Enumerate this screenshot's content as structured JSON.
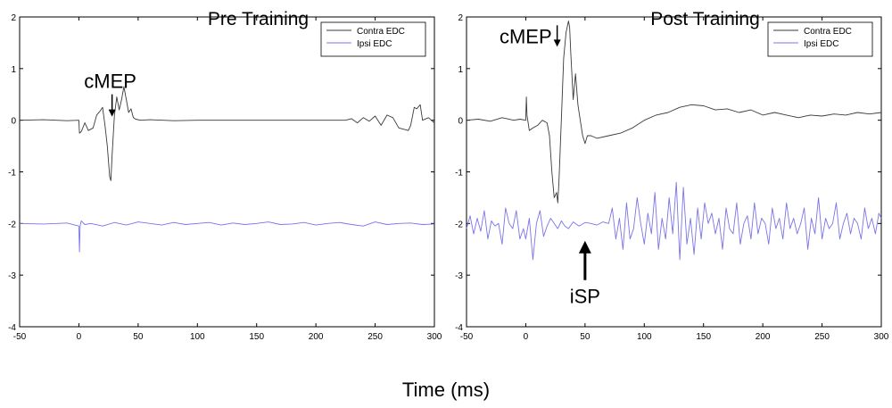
{
  "figure": {
    "xlabel": "Time (ms)"
  },
  "colors": {
    "contra": "#3a3a3a",
    "ipsi": "#7b74e8",
    "axis": "#000000"
  },
  "chart_data": [
    {
      "type": "line",
      "title": "Pre Training",
      "xlim": [
        -50,
        300
      ],
      "ylim": [
        -4,
        2
      ],
      "xticks": [
        -50,
        0,
        50,
        100,
        150,
        200,
        250,
        300
      ],
      "yticks": [
        -4,
        -3,
        -2,
        -1,
        0,
        1,
        2
      ],
      "legend": {
        "position": "top-right",
        "entries": [
          "Contra EDC",
          "Ipsi EDC"
        ]
      },
      "annotations": [
        {
          "text": "cMEP",
          "x": 28,
          "y": 0.45,
          "arrow": "down"
        }
      ],
      "series": [
        {
          "name": "Contra EDC",
          "x": [
            -50,
            -30,
            -10,
            0,
            0.5,
            2,
            5,
            8,
            12,
            15,
            18,
            20,
            22,
            24,
            26,
            27,
            28,
            30,
            32,
            34,
            36,
            38,
            40,
            42,
            44,
            46,
            48,
            52,
            60,
            80,
            100,
            150,
            200,
            225,
            230,
            235,
            240,
            245,
            250,
            255,
            260,
            265,
            270,
            278,
            280,
            283,
            285,
            288,
            290,
            295,
            300
          ],
          "y": [
            0,
            0.01,
            -0.01,
            0,
            -0.25,
            -0.22,
            -0.05,
            -0.2,
            -0.15,
            0.1,
            0.18,
            0.25,
            -0.1,
            -0.5,
            -1.1,
            -1.17,
            -0.7,
            0.1,
            0.45,
            0.2,
            0.4,
            0.65,
            0.4,
            0.15,
            0.22,
            0.05,
            0.02,
            0,
            0.01,
            -0.01,
            0,
            0,
            0,
            0,
            0.03,
            -0.05,
            0.05,
            -0.02,
            0.08,
            -0.1,
            0.1,
            0.05,
            -0.15,
            -0.2,
            -0.1,
            0.25,
            0.22,
            0.3,
            0,
            0.05,
            -0.05
          ]
        },
        {
          "name": "Ipsi EDC",
          "x": [
            -50,
            -30,
            -10,
            0,
            0.5,
            1,
            2,
            5,
            10,
            20,
            30,
            40,
            50,
            60,
            70,
            80,
            90,
            100,
            110,
            120,
            130,
            140,
            150,
            160,
            170,
            180,
            190,
            200,
            210,
            220,
            230,
            240,
            250,
            260,
            270,
            280,
            290,
            300
          ],
          "y": [
            -2,
            -2.01,
            -1.99,
            -2.05,
            -2.55,
            -2.05,
            -1.95,
            -2.02,
            -2,
            -2.05,
            -1.98,
            -2.03,
            -1.97,
            -2,
            -2.03,
            -1.98,
            -2.02,
            -2,
            -1.98,
            -2.03,
            -1.99,
            -2.02,
            -2,
            -1.97,
            -2.02,
            -2.01,
            -1.98,
            -2.03,
            -2,
            -1.98,
            -2.02,
            -2.05,
            -1.97,
            -2.02,
            -2,
            -1.99,
            -2.02,
            -2.01
          ]
        }
      ]
    },
    {
      "type": "line",
      "title": "Post Training",
      "xlim": [
        -50,
        300
      ],
      "ylim": [
        -4,
        2
      ],
      "xticks": [
        -50,
        0,
        50,
        100,
        150,
        200,
        250,
        300
      ],
      "yticks": [
        -4,
        -3,
        -2,
        -1,
        0,
        1,
        2
      ],
      "legend": {
        "position": "top-right",
        "entries": [
          "Contra EDC",
          "Ipsi EDC"
        ]
      },
      "annotations": [
        {
          "text": "cMEP",
          "x": 25,
          "y": 1.7,
          "arrow": "down"
        },
        {
          "text": "iSP",
          "x": 50,
          "y": -3.2,
          "arrow": "up"
        }
      ],
      "series": [
        {
          "name": "Contra EDC",
          "x": [
            -50,
            -40,
            -30,
            -20,
            -10,
            -5,
            0,
            0.5,
            1,
            3,
            6,
            10,
            14,
            18,
            20,
            22,
            24,
            26,
            27,
            28,
            30,
            32,
            34,
            36,
            37,
            38,
            40,
            42,
            44,
            46,
            48,
            50,
            52,
            55,
            60,
            70,
            80,
            90,
            100,
            110,
            120,
            130,
            140,
            150,
            160,
            170,
            180,
            190,
            200,
            210,
            220,
            230,
            240,
            250,
            260,
            270,
            280,
            290,
            300
          ],
          "y": [
            0,
            0.02,
            -0.02,
            0.05,
            0,
            0.02,
            0,
            0.45,
            0.1,
            -0.2,
            -0.15,
            -0.1,
            0,
            -0.05,
            -0.3,
            -1.0,
            -1.5,
            -1.4,
            -1.6,
            -1.2,
            0,
            1.2,
            1.7,
            1.92,
            1.8,
            1.3,
            0.4,
            0.9,
            0.3,
            0,
            -0.3,
            -0.45,
            -0.3,
            -0.3,
            -0.35,
            -0.3,
            -0.25,
            -0.15,
            0,
            0.1,
            0.15,
            0.25,
            0.3,
            0.28,
            0.2,
            0.22,
            0.15,
            0.2,
            0.1,
            0.15,
            0.1,
            0.05,
            0.1,
            0.08,
            0.12,
            0.1,
            0.15,
            0.12,
            0.15
          ]
        },
        {
          "name": "Ipsi EDC",
          "x": [
            -50,
            -47,
            -44,
            -41,
            -38,
            -35,
            -32,
            -29,
            -26,
            -23,
            -20,
            -17,
            -14,
            -11,
            -8,
            -5,
            -2,
            0,
            3,
            6,
            9,
            12,
            15,
            18,
            21,
            24,
            27,
            30,
            33,
            36,
            40,
            45,
            50,
            55,
            60,
            65,
            70,
            73,
            76,
            79,
            82,
            85,
            88,
            91,
            94,
            97,
            100,
            103,
            106,
            109,
            112,
            115,
            118,
            121,
            124,
            127,
            130,
            133,
            136,
            139,
            142,
            145,
            148,
            151,
            154,
            157,
            160,
            163,
            166,
            169,
            172,
            175,
            178,
            181,
            184,
            187,
            190,
            193,
            196,
            199,
            202,
            205,
            208,
            211,
            214,
            217,
            220,
            223,
            226,
            229,
            232,
            235,
            238,
            241,
            244,
            247,
            250,
            253,
            256,
            259,
            262,
            265,
            268,
            271,
            274,
            277,
            280,
            283,
            286,
            289,
            292,
            295,
            298,
            300
          ],
          "y": [
            -2.1,
            -1.85,
            -2.2,
            -1.9,
            -2.15,
            -1.75,
            -2.3,
            -1.95,
            -2.05,
            -2.0,
            -2.4,
            -1.7,
            -2.0,
            -2.1,
            -1.75,
            -2.3,
            -2.1,
            -2.3,
            -1.9,
            -2.7,
            -2.0,
            -1.75,
            -2.25,
            -2.05,
            -1.9,
            -2.0,
            -2.1,
            -1.95,
            -2.05,
            -2.1,
            -1.97,
            -2.05,
            -1.98,
            -2.0,
            -2.03,
            -1.97,
            -2.0,
            -1.7,
            -2.3,
            -1.9,
            -2.5,
            -1.6,
            -2.3,
            -2.1,
            -1.5,
            -2.0,
            -2.4,
            -1.8,
            -2.2,
            -1.4,
            -2.5,
            -1.9,
            -2.3,
            -1.5,
            -2.2,
            -1.2,
            -2.7,
            -1.3,
            -2.4,
            -1.9,
            -2.6,
            -1.7,
            -2.3,
            -1.6,
            -2.0,
            -1.8,
            -2.2,
            -1.9,
            -2.5,
            -1.7,
            -2.1,
            -2.2,
            -1.6,
            -2.4,
            -2.0,
            -1.85,
            -2.3,
            -1.6,
            -2.2,
            -1.9,
            -2.0,
            -2.4,
            -1.7,
            -2.1,
            -1.9,
            -2.3,
            -1.6,
            -2.1,
            -1.9,
            -2.2,
            -2.0,
            -1.7,
            -2.5,
            -1.9,
            -2.2,
            -1.5,
            -2.3,
            -1.9,
            -2.1,
            -2.0,
            -1.6,
            -2.3,
            -2.0,
            -1.8,
            -2.2,
            -1.9,
            -2.0,
            -2.3,
            -1.7,
            -2.1,
            -1.9,
            -2.2,
            -1.8,
            -1.9
          ]
        }
      ]
    }
  ]
}
